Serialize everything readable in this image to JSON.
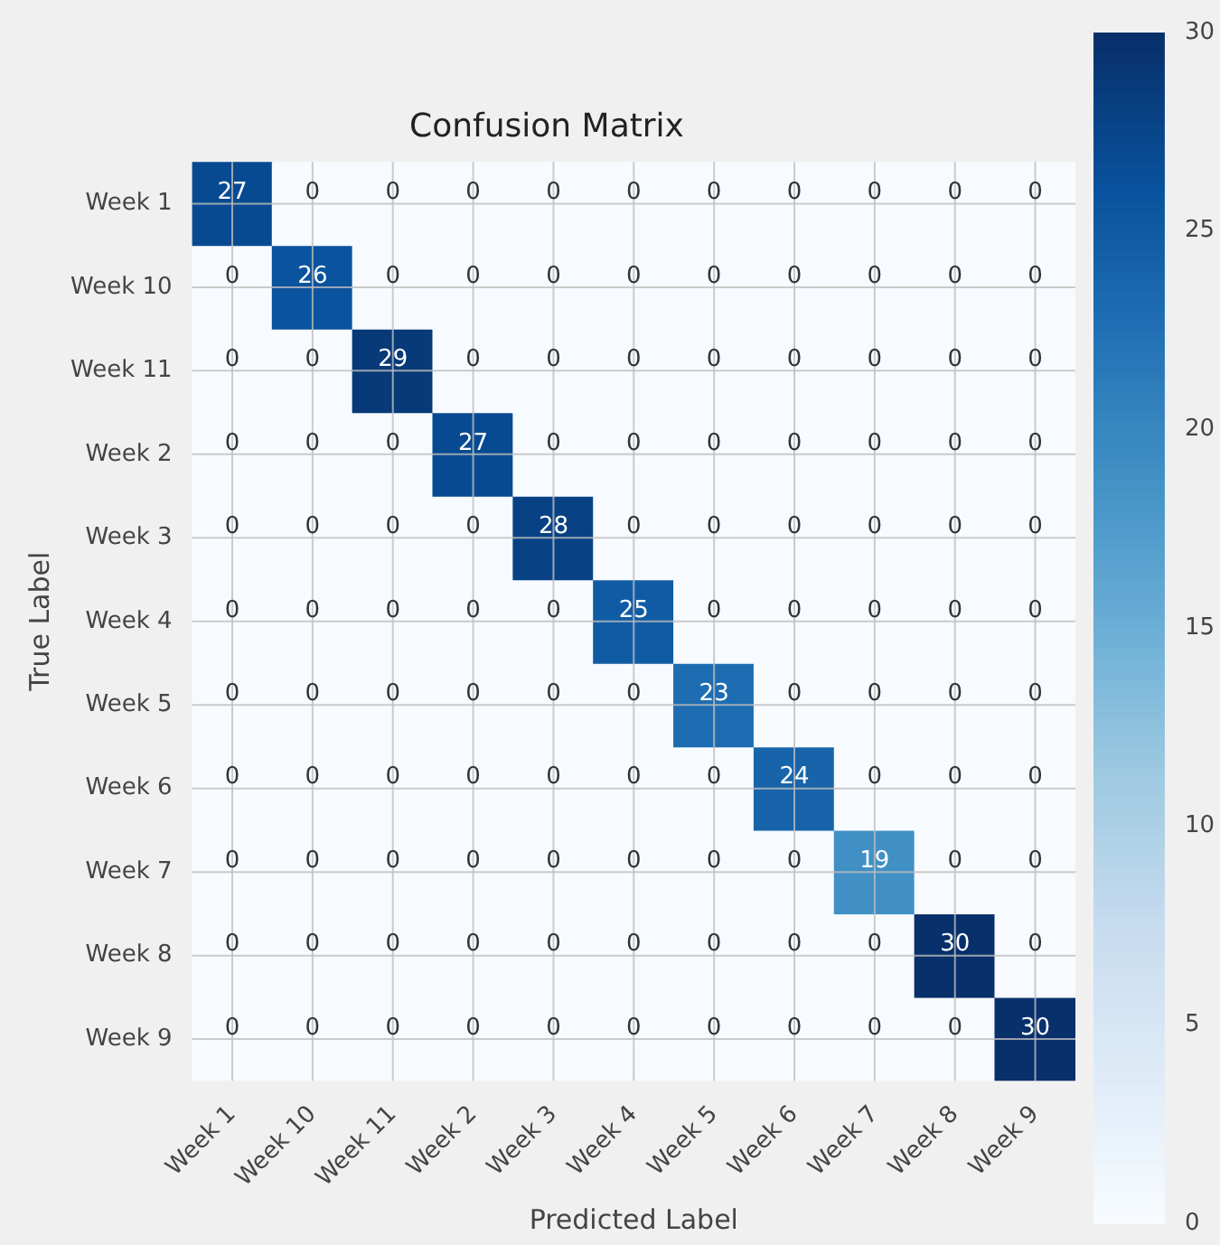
{
  "chart_data": {
    "type": "heatmap",
    "title": "Confusion Matrix",
    "xlabel": "Predicted Label",
    "ylabel": "True Label",
    "categories": [
      "Week 1",
      "Week 10",
      "Week 11",
      "Week 2",
      "Week 3",
      "Week 4",
      "Week 5",
      "Week 6",
      "Week 7",
      "Week 8",
      "Week 9"
    ],
    "y_categories": [
      "Week 1",
      "Week 10",
      "Week 11",
      "Week 2",
      "Week 3",
      "Week 4",
      "Week 5",
      "Week 6",
      "Week 7",
      "Week 8",
      "Week 9"
    ],
    "cells": [
      [
        27,
        0,
        0,
        0,
        0,
        0,
        0,
        0,
        0,
        0,
        0
      ],
      [
        0,
        26,
        0,
        0,
        0,
        0,
        0,
        0,
        0,
        0,
        0
      ],
      [
        0,
        0,
        29,
        0,
        0,
        0,
        0,
        0,
        0,
        0,
        0
      ],
      [
        0,
        0,
        0,
        27,
        0,
        0,
        0,
        0,
        0,
        0,
        0
      ],
      [
        0,
        0,
        0,
        0,
        28,
        0,
        0,
        0,
        0,
        0,
        0
      ],
      [
        0,
        0,
        0,
        0,
        0,
        25,
        0,
        0,
        0,
        0,
        0
      ],
      [
        0,
        0,
        0,
        0,
        0,
        0,
        23,
        0,
        0,
        0,
        0
      ],
      [
        0,
        0,
        0,
        0,
        0,
        0,
        0,
        24,
        0,
        0,
        0
      ],
      [
        0,
        0,
        0,
        0,
        0,
        0,
        0,
        0,
        19,
        0,
        0
      ],
      [
        0,
        0,
        0,
        0,
        0,
        0,
        0,
        0,
        0,
        30,
        0
      ],
      [
        0,
        0,
        0,
        0,
        0,
        0,
        0,
        0,
        0,
        0,
        30
      ]
    ],
    "clim": [
      0,
      30
    ],
    "cticks": [
      0,
      5,
      10,
      15,
      20,
      25,
      30
    ],
    "data_labels": true,
    "grid": true
  }
}
